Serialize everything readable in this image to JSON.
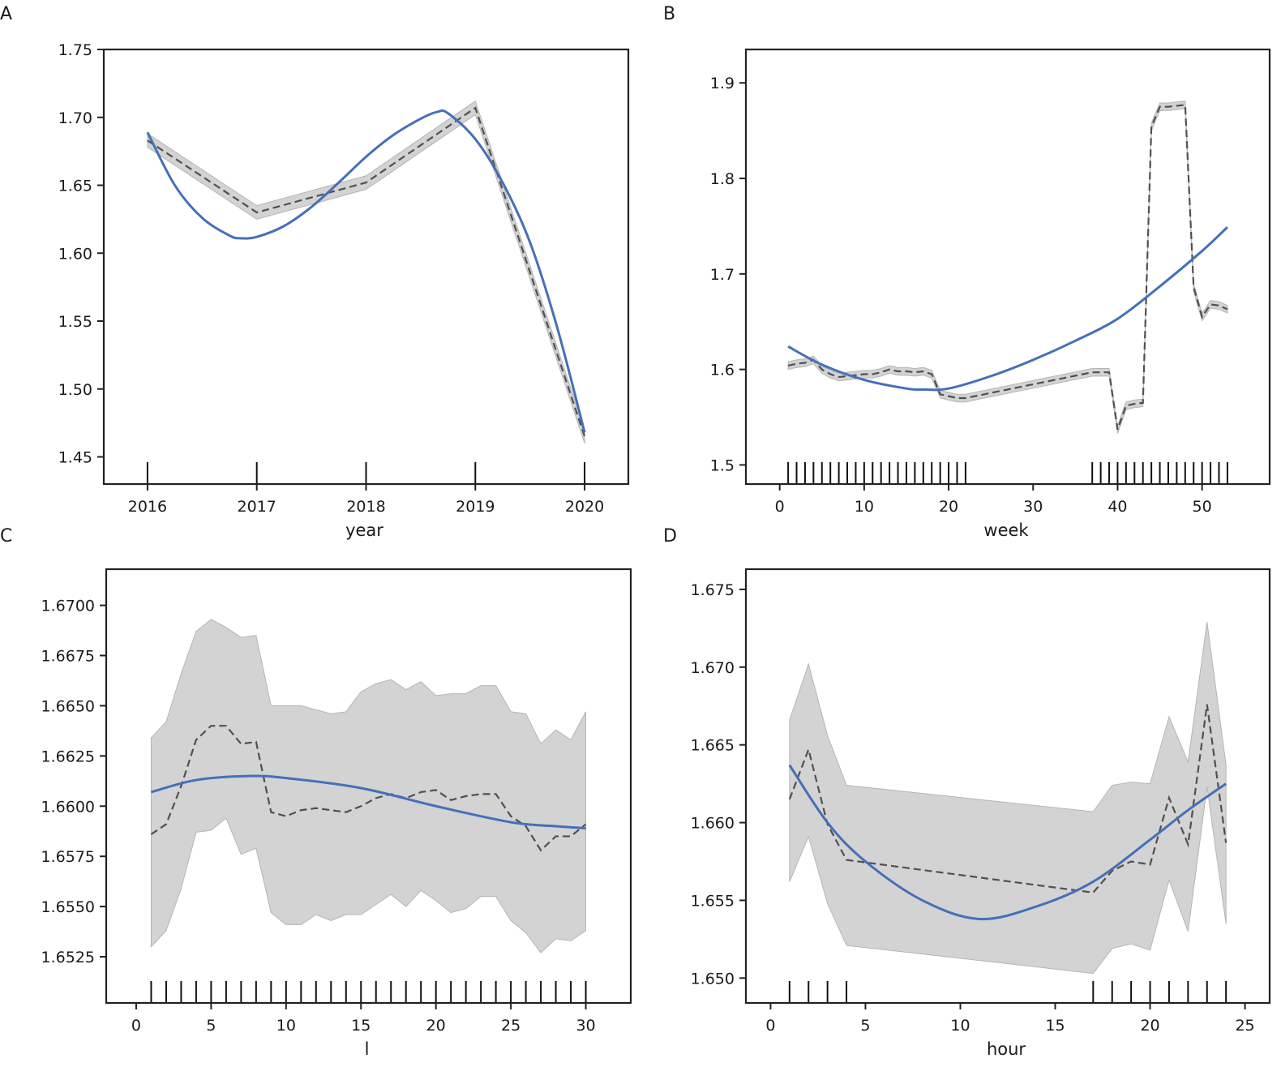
{
  "colors": {
    "smooth": "#4470b8",
    "dashed": "#505050",
    "band": "#d3d3d3",
    "axis": "#222222"
  },
  "chart_data": [
    {
      "panel": "A",
      "type": "line",
      "xlabel": "year",
      "ylabel": "",
      "xlim": [
        2015.6,
        2020.4
      ],
      "ylim": [
        1.43,
        1.75
      ],
      "xticks": [
        2016,
        2017,
        2018,
        2019,
        2020
      ],
      "xtick_labels": [
        "2016",
        "2017",
        "2018",
        "2019",
        "2020"
      ],
      "yticks": [
        1.45,
        1.5,
        1.55,
        1.6,
        1.65,
        1.7,
        1.75
      ],
      "ytick_labels": [
        "1.45",
        "1.50",
        "1.55",
        "1.60",
        "1.65",
        "1.70",
        "1.75"
      ],
      "rug": [
        2016,
        2017,
        2018,
        2019,
        2020
      ],
      "dashed": {
        "x": [
          2016,
          2017,
          2018,
          2019,
          2020
        ],
        "y": [
          1.683,
          1.63,
          1.652,
          1.707,
          1.465
        ],
        "lower": [
          1.678,
          1.625,
          1.647,
          1.702,
          1.46
        ],
        "upper": [
          1.688,
          1.635,
          1.657,
          1.712,
          1.47
        ]
      },
      "smooth": {
        "x": [
          2016,
          2016.25,
          2016.5,
          2016.75,
          2016.85,
          2017,
          2017.25,
          2017.5,
          2017.75,
          2018,
          2018.25,
          2018.5,
          2018.65,
          2018.75,
          2019,
          2019.25,
          2019.5,
          2019.75,
          2020
        ],
        "y": [
          1.689,
          1.65,
          1.626,
          1.613,
          1.611,
          1.612,
          1.62,
          1.634,
          1.652,
          1.671,
          1.687,
          1.699,
          1.704,
          1.703,
          1.684,
          1.652,
          1.608,
          1.545,
          1.468
        ]
      }
    },
    {
      "panel": "B",
      "type": "line",
      "xlabel": "week",
      "ylabel": "",
      "xlim": [
        -4,
        58
      ],
      "ylim": [
        1.48,
        1.935
      ],
      "xticks": [
        0,
        10,
        20,
        30,
        40,
        50
      ],
      "xtick_labels": [
        "0",
        "10",
        "20",
        "30",
        "40",
        "50"
      ],
      "yticks": [
        1.5,
        1.6,
        1.7,
        1.8,
        1.9
      ],
      "ytick_labels": [
        "1.5",
        "1.6",
        "1.7",
        "1.8",
        "1.9"
      ],
      "rug": [
        1,
        2,
        3,
        4,
        5,
        6,
        7,
        8,
        9,
        10,
        11,
        12,
        13,
        14,
        15,
        16,
        17,
        18,
        19,
        20,
        21,
        22,
        37,
        38,
        39,
        40,
        41,
        42,
        43,
        44,
        45,
        46,
        47,
        48,
        49,
        50,
        51,
        52,
        53
      ],
      "dashed": {
        "x": [
          1,
          2,
          3,
          4,
          5,
          6,
          7,
          8,
          9,
          10,
          11,
          12,
          13,
          14,
          15,
          16,
          17,
          18,
          19,
          20,
          21,
          22,
          37,
          38,
          39,
          40,
          41,
          42,
          43,
          44,
          45,
          46,
          47,
          48,
          49,
          50,
          51,
          52,
          53
        ],
        "y": [
          1.604,
          1.606,
          1.607,
          1.61,
          1.6,
          1.595,
          1.592,
          1.593,
          1.594,
          1.595,
          1.595,
          1.597,
          1.6,
          1.598,
          1.598,
          1.597,
          1.598,
          1.595,
          1.574,
          1.572,
          1.57,
          1.57,
          1.597,
          1.597,
          1.597,
          1.537,
          1.562,
          1.564,
          1.565,
          1.854,
          1.875,
          1.875,
          1.876,
          1.877,
          1.686,
          1.655,
          1.668,
          1.667,
          1.663
        ],
        "band": 0.004
      },
      "smooth": {
        "x": [
          1,
          5,
          10,
          15,
          17,
          20,
          25,
          30,
          35,
          40,
          45,
          50,
          53
        ],
        "y": [
          1.624,
          1.605,
          1.589,
          1.58,
          1.579,
          1.58,
          1.593,
          1.61,
          1.63,
          1.653,
          1.687,
          1.724,
          1.749
        ]
      }
    },
    {
      "panel": "C",
      "type": "line",
      "xlabel": "l",
      "ylabel": "",
      "xlim": [
        -2,
        33
      ],
      "ylim": [
        1.6502,
        1.6718
      ],
      "xticks": [
        0,
        5,
        10,
        15,
        20,
        25,
        30
      ],
      "xtick_labels": [
        "0",
        "5",
        "10",
        "15",
        "20",
        "25",
        "30"
      ],
      "yticks": [
        1.6525,
        1.655,
        1.6575,
        1.66,
        1.6625,
        1.665,
        1.6675,
        1.67
      ],
      "ytick_labels": [
        "1.6525",
        "1.6550",
        "1.6575",
        "1.6600",
        "1.6625",
        "1.6650",
        "1.6675",
        "1.6700"
      ],
      "rug": [
        1,
        2,
        3,
        4,
        5,
        6,
        7,
        8,
        9,
        10,
        11,
        12,
        13,
        14,
        15,
        16,
        17,
        18,
        19,
        20,
        21,
        22,
        23,
        24,
        25,
        26,
        27,
        28,
        29,
        30
      ],
      "dashed": {
        "x": [
          1,
          2,
          3,
          4,
          5,
          6,
          7,
          8,
          9,
          10,
          11,
          12,
          13,
          14,
          15,
          16,
          17,
          18,
          19,
          20,
          21,
          22,
          23,
          24,
          25,
          26,
          27,
          28,
          29,
          30
        ],
        "y": [
          1.6586,
          1.6591,
          1.661,
          1.6633,
          1.664,
          1.664,
          1.6631,
          1.6632,
          1.6597,
          1.6595,
          1.6598,
          1.6599,
          1.6598,
          1.6597,
          1.66,
          1.6604,
          1.6606,
          1.6604,
          1.6607,
          1.6608,
          1.6603,
          1.6605,
          1.6606,
          1.6606,
          1.6595,
          1.659,
          1.6578,
          1.6585,
          1.6585,
          1.6591
        ],
        "upper": [
          1.6634,
          1.6642,
          1.6666,
          1.6687,
          1.6693,
          1.6689,
          1.6684,
          1.6685,
          1.665,
          1.665,
          1.665,
          1.6648,
          1.6646,
          1.6647,
          1.6657,
          1.6661,
          1.6663,
          1.6658,
          1.6662,
          1.6655,
          1.6656,
          1.6656,
          1.666,
          1.666,
          1.6647,
          1.6646,
          1.6631,
          1.6638,
          1.6633,
          1.6647
        ],
        "lower": [
          1.653,
          1.6538,
          1.6559,
          1.6587,
          1.6588,
          1.6594,
          1.6576,
          1.6579,
          1.6547,
          1.6541,
          1.6541,
          1.6546,
          1.6543,
          1.6546,
          1.6546,
          1.6551,
          1.6556,
          1.655,
          1.6558,
          1.6553,
          1.6547,
          1.6549,
          1.6555,
          1.6555,
          1.6543,
          1.6537,
          1.6527,
          1.6534,
          1.6533,
          1.6538
        ]
      },
      "smooth": {
        "x": [
          1,
          4,
          7.5,
          10,
          15,
          20,
          25,
          28,
          30
        ],
        "y": [
          1.6607,
          1.6613,
          1.6615,
          1.6614,
          1.6609,
          1.66,
          1.6592,
          1.659,
          1.6589
        ]
      }
    },
    {
      "panel": "D",
      "type": "line",
      "xlabel": "hour",
      "ylabel": "",
      "xlim": [
        -1.3,
        26.3
      ],
      "ylim": [
        1.6484,
        1.6763
      ],
      "xticks": [
        0,
        5,
        10,
        15,
        20,
        25
      ],
      "xtick_labels": [
        "0",
        "5",
        "10",
        "15",
        "20",
        "25"
      ],
      "yticks": [
        1.65,
        1.655,
        1.66,
        1.665,
        1.67,
        1.675
      ],
      "ytick_labels": [
        "1.650",
        "1.655",
        "1.660",
        "1.665",
        "1.670",
        "1.675"
      ],
      "rug": [
        1,
        2,
        3,
        4,
        17,
        18,
        19,
        20,
        21,
        22,
        23,
        24
      ],
      "dashed": {
        "x": [
          1,
          2,
          3,
          4,
          17,
          18,
          19,
          20,
          21,
          22,
          23,
          24
        ],
        "y": [
          1.6615,
          1.6647,
          1.6599,
          1.6576,
          1.6555,
          1.6569,
          1.6575,
          1.6573,
          1.6616,
          1.6586,
          1.6676,
          1.6587
        ],
        "upper": [
          1.6666,
          1.6702,
          1.6656,
          1.6624,
          1.6607,
          1.6624,
          1.6626,
          1.6625,
          1.6668,
          1.6639,
          1.6729,
          1.6637
        ],
        "lower": [
          1.6562,
          1.6591,
          1.6548,
          1.6521,
          1.6503,
          1.6519,
          1.6522,
          1.6518,
          1.6563,
          1.653,
          1.6623,
          1.6535
        ]
      },
      "smooth": {
        "x": [
          1,
          3,
          5,
          8,
          11,
          14,
          17,
          20,
          22,
          24
        ],
        "y": [
          1.6637,
          1.66,
          1.6575,
          1.655,
          1.6538,
          1.6546,
          1.6562,
          1.6589,
          1.6608,
          1.6625
        ]
      }
    }
  ]
}
